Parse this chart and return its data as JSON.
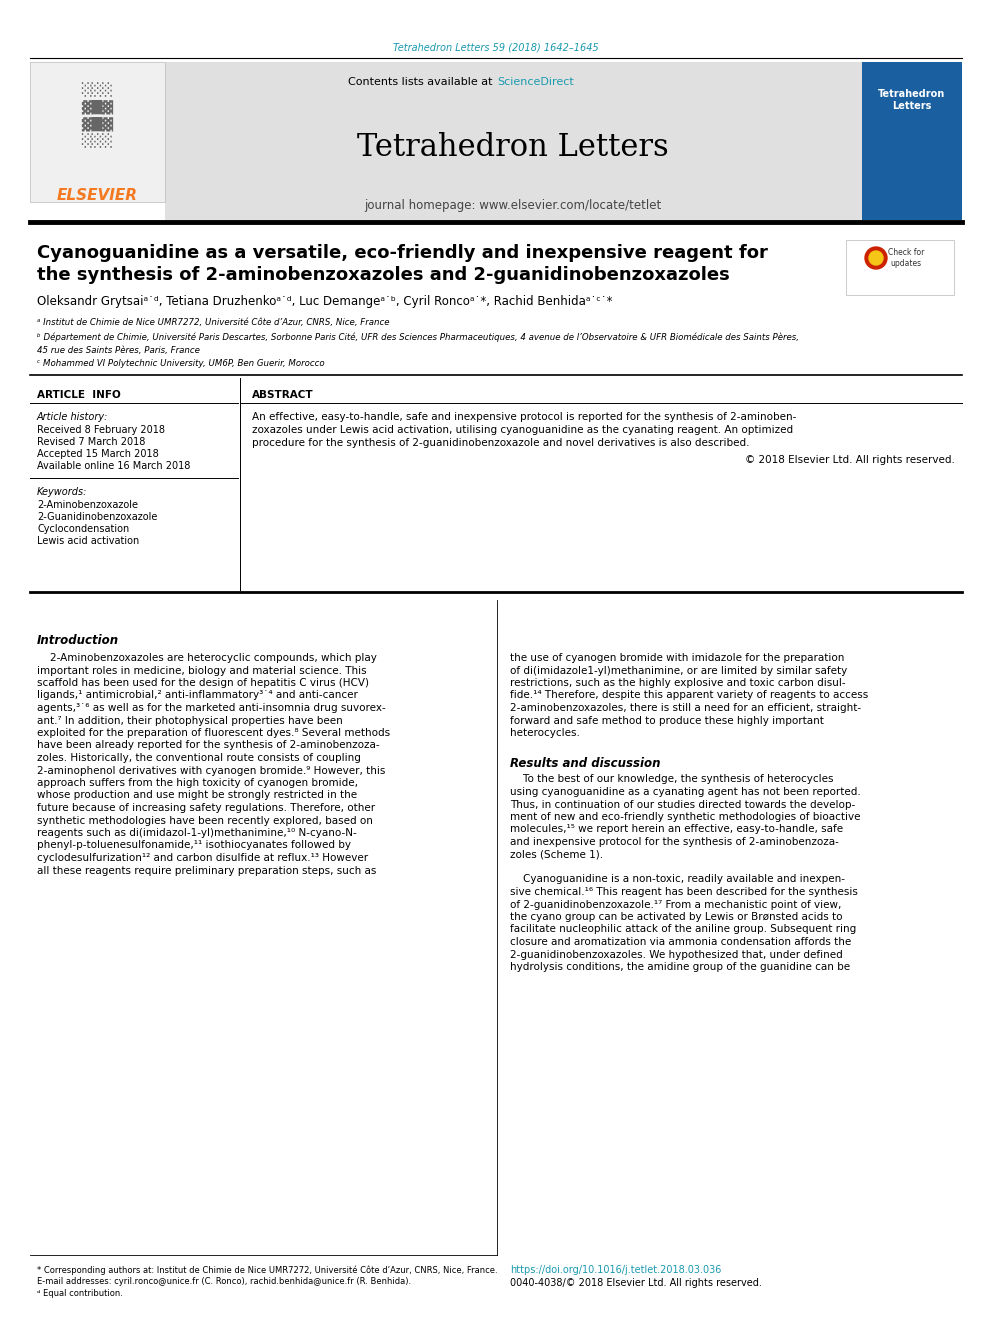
{
  "page_bg": "#ffffff",
  "top_citation": "Tetrahedron Letters 59 (2018) 1642–1645",
  "top_citation_color": "#1a9aaf",
  "header_bg": "#e0e0e0",
  "contents_text": "Contents lists available at ",
  "sciencedirect_text": "ScienceDirect",
  "sciencedirect_color": "#1a9aaf",
  "journal_title": "Tetrahedron Letters",
  "journal_homepage": "journal homepage: www.elsevier.com/locate/tetlet",
  "elsevier_color": "#f47920",
  "article_title_line1": "Cyanoguanidine as a versatile, eco-friendly and inexpensive reagent for",
  "article_title_line2": "the synthesis of 2-aminobenzoxazoles and 2-guanidinobenzoxazoles",
  "authors_full": "Oleksandr Grytsaiᵃ˙ᵈ, Tetiana Druzhenkoᵃ˙ᵈ, Luc Demangeᵃ˙ᵇ, Cyril Roncoᵃ˙*, Rachid Benhidaᵃ˙ᶜ˙*",
  "affil_a": "ᵃ Institut de Chimie de Nice UMR7272, Université Côte d’Azur, CNRS, Nice, France",
  "affil_b": "ᵇ Département de Chimie, Université Paris Descartes, Sorbonne Paris Cité, UFR des Sciences Pharmaceutiques, 4 avenue de l’Observatoire & UFR Biomédicale des Saints Pères,",
  "affil_b2": "45 rue des Saints Pères, Paris, France",
  "affil_c": "ᶜ Mohammed VI Polytechnic University, UM6P, Ben Guerir, Morocco",
  "article_info_title": "ARTICLE  INFO",
  "article_history_title": "Article history:",
  "received": "Received 8 February 2018",
  "revised": "Revised 7 March 2018",
  "accepted": "Accepted 15 March 2018",
  "available": "Available online 16 March 2018",
  "keywords_title": "Keywords:",
  "kw1": "2-Aminobenzoxazole",
  "kw2": "2-Guanidinobenzoxazole",
  "kw3": "Cyclocondensation",
  "kw4": "Lewis acid activation",
  "abstract_title": "ABSTRACT",
  "abstract_line1": "An effective, easy-to-handle, safe and inexpensive protocol is reported for the synthesis of 2-aminoben-",
  "abstract_line2": "zoxazoles under Lewis acid activation, utilising cyanoguanidine as the cyanating reagent. An optimized",
  "abstract_line3": "procedure for the synthesis of 2-guanidinobenzoxazole and novel derivatives is also described.",
  "abstract_line4": "© 2018 Elsevier Ltd. All rights reserved.",
  "intro_title": "Introduction",
  "results_title": "Results and discussion",
  "doi_text": "https://doi.org/10.1016/j.tetlet.2018.03.036",
  "doi_color": "#1a9aaf",
  "issn_text": "0040-4038/© 2018 Elsevier Ltd. All rights reserved.",
  "footnote1": "* Corresponding authors at: Institut de Chimie de Nice UMR7272, Université Côte d’Azur, CNRS, Nice, France.",
  "footnote2": "E-mail addresses: cyril.ronco@unice.fr (C. Ronco), rachid.benhida@unice.fr (R. Benhida).",
  "footnote3": "ᵈ Equal contribution."
}
